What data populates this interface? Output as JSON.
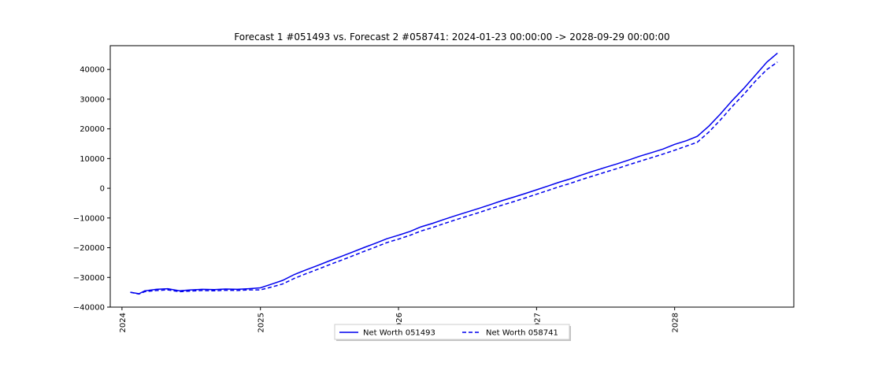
{
  "chart_data": {
    "type": "line",
    "title": "Forecast 1 #051493 vs. Forecast 2 #058741: 2024-01-23 00:00:00 -> 2028-09-29 00:00:00",
    "xlabel": "",
    "ylabel": "",
    "xlim": [
      "2023-12-01",
      "2028-11-11"
    ],
    "ylim": [
      -40000,
      48000
    ],
    "x_ticks": [
      "2024",
      "2025",
      "2026",
      "2027",
      "2028"
    ],
    "y_ticks": [
      -40000,
      -30000,
      -20000,
      -10000,
      0,
      10000,
      20000,
      30000,
      40000
    ],
    "y_tick_labels": [
      "−40000",
      "−30000",
      "−20000",
      "−10000",
      "0",
      "10000",
      "20000",
      "30000",
      "40000"
    ],
    "grid": false,
    "legend_position": "bottom-center",
    "line_color": "#0000ee",
    "series": [
      {
        "name": "Net Worth 051493",
        "style": "solid",
        "x": [
          "2024-01-23",
          "2024-02-15",
          "2024-03-01",
          "2024-04-01",
          "2024-05-01",
          "2024-06-01",
          "2024-07-01",
          "2024-08-01",
          "2024-09-01",
          "2024-10-01",
          "2024-11-01",
          "2024-12-01",
          "2025-01-01",
          "2025-02-01",
          "2025-03-01",
          "2025-04-01",
          "2025-05-01",
          "2025-06-01",
          "2025-07-01",
          "2025-08-01",
          "2025-09-01",
          "2025-10-01",
          "2025-11-01",
          "2025-12-01",
          "2026-01-01",
          "2026-02-01",
          "2026-03-01",
          "2026-04-01",
          "2026-05-01",
          "2026-06-01",
          "2026-07-01",
          "2026-08-01",
          "2026-09-01",
          "2026-10-01",
          "2026-11-01",
          "2026-12-01",
          "2027-01-01",
          "2027-02-01",
          "2027-03-01",
          "2027-04-01",
          "2027-05-01",
          "2027-06-01",
          "2027-07-01",
          "2027-08-01",
          "2027-09-01",
          "2027-10-01",
          "2027-11-01",
          "2027-12-01",
          "2028-01-01",
          "2028-02-01",
          "2028-03-01",
          "2028-04-01",
          "2028-05-01",
          "2028-06-01",
          "2028-07-01",
          "2028-08-01",
          "2028-09-01",
          "2028-09-29"
        ],
        "values": [
          -35000,
          -35500,
          -34500,
          -34000,
          -33800,
          -34500,
          -34200,
          -34000,
          -34100,
          -33900,
          -34000,
          -33800,
          -33500,
          -32200,
          -31000,
          -29000,
          -27500,
          -26000,
          -24500,
          -23000,
          -21500,
          -20000,
          -18500,
          -17000,
          -15800,
          -14500,
          -13000,
          -11800,
          -10500,
          -9200,
          -8000,
          -6800,
          -5500,
          -4200,
          -3000,
          -1800,
          -500,
          800,
          2000,
          3200,
          4500,
          5800,
          7000,
          8200,
          9500,
          10800,
          12000,
          13200,
          14800,
          16000,
          17500,
          21000,
          25000,
          29500,
          33500,
          38000,
          42500,
          45500
        ]
      },
      {
        "name": "Net Worth 058741",
        "style": "dashed",
        "x": [
          "2024-01-23",
          "2024-02-15",
          "2024-03-01",
          "2024-04-01",
          "2024-05-01",
          "2024-06-01",
          "2024-07-01",
          "2024-08-01",
          "2024-09-01",
          "2024-10-01",
          "2024-11-01",
          "2024-12-01",
          "2025-01-01",
          "2025-02-01",
          "2025-03-01",
          "2025-04-01",
          "2025-05-01",
          "2025-06-01",
          "2025-07-01",
          "2025-08-01",
          "2025-09-01",
          "2025-10-01",
          "2025-11-01",
          "2025-12-01",
          "2026-01-01",
          "2026-02-01",
          "2026-03-01",
          "2026-04-01",
          "2026-05-01",
          "2026-06-01",
          "2026-07-01",
          "2026-08-01",
          "2026-09-01",
          "2026-10-01",
          "2026-11-01",
          "2026-12-01",
          "2027-01-01",
          "2027-02-01",
          "2027-03-01",
          "2027-04-01",
          "2027-05-01",
          "2027-06-01",
          "2027-07-01",
          "2027-08-01",
          "2027-09-01",
          "2027-10-01",
          "2027-11-01",
          "2027-12-01",
          "2028-01-01",
          "2028-02-01",
          "2028-03-01",
          "2028-04-01",
          "2028-05-01",
          "2028-06-01",
          "2028-07-01",
          "2028-08-01",
          "2028-09-01",
          "2028-09-29"
        ],
        "values": [
          -35000,
          -35600,
          -34800,
          -34400,
          -34200,
          -34800,
          -34600,
          -34400,
          -34500,
          -34300,
          -34400,
          -34200,
          -34200,
          -33200,
          -32200,
          -30300,
          -28800,
          -27300,
          -25800,
          -24300,
          -22800,
          -21300,
          -19800,
          -18300,
          -17100,
          -15800,
          -14400,
          -13200,
          -11900,
          -10600,
          -9400,
          -8200,
          -6900,
          -5700,
          -4500,
          -3300,
          -2000,
          -700,
          500,
          1700,
          3000,
          4200,
          5400,
          6600,
          7900,
          9100,
          10300,
          11500,
          12800,
          14200,
          15500,
          19000,
          23000,
          27500,
          31500,
          36000,
          40000,
          42500
        ]
      }
    ]
  }
}
